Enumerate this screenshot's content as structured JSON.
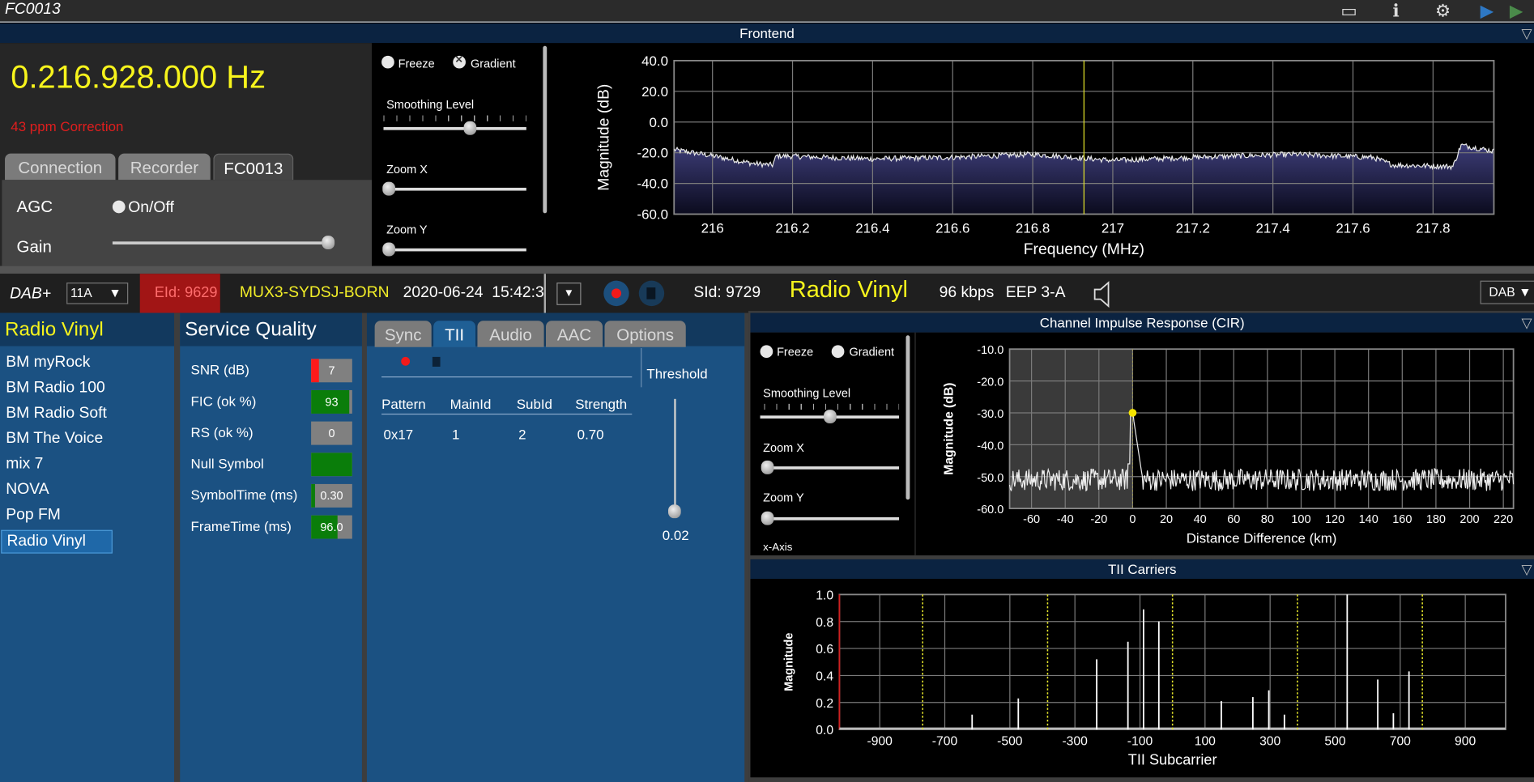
{
  "window": {
    "title": "FC0013",
    "icons": [
      "window-icon",
      "info-icon",
      "gear-icon",
      "play-icon",
      "play-green-icon"
    ]
  },
  "frontend": {
    "header": "Frontend",
    "frequency": "0.216.928.000",
    "frequency_unit": "Hz",
    "correction": "43 ppm Correction",
    "tabs": [
      {
        "label": "Connection"
      },
      {
        "label": "Recorder"
      },
      {
        "label": "FC0013",
        "active": true
      }
    ],
    "agc_label": "AGC",
    "agc_toggle": "On/Off",
    "gain_label": "Gain",
    "gain_value": 1.0,
    "controls": {
      "freeze": "Freeze",
      "gradient": "Gradient",
      "smoothing": "Smoothing Level",
      "zoom_x": "Zoom X",
      "zoom_y": "Zoom Y",
      "smoothing_value": 0.6,
      "zoom_x_value": 0,
      "zoom_y_value": 0
    }
  },
  "dab_bar": {
    "mode": "DAB+",
    "channel": "11A",
    "eid": "EId: 9629",
    "ensemble": "MUX3-SYDSJ-BORN",
    "datetime": "2020-06-24  15:42:3",
    "sid": "SId: 9729",
    "service": "Radio Vinyl",
    "bitrate": "96 kbps",
    "protection": "EEP 3-A",
    "output": "DAB"
  },
  "stations": {
    "title": "Radio Vinyl",
    "items": [
      "BM myRock",
      "BM Radio 100",
      "BM Radio Soft",
      "BM The Voice",
      "mix 7",
      "NOVA",
      "Pop FM",
      "Radio Vinyl"
    ],
    "selected": "Radio Vinyl"
  },
  "service_quality": {
    "title": "Service Quality",
    "rows": [
      {
        "label": "SNR (dB)",
        "value": "7",
        "level": 0.2,
        "color": "#ff1a1a"
      },
      {
        "label": "FIC (ok %)",
        "value": "93",
        "level": 0.93,
        "color": "#0a7d0a"
      },
      {
        "label": "RS (ok %)",
        "value": "0",
        "level": 0,
        "color": "#0a7d0a"
      },
      {
        "label": "Null Symbol",
        "value": "",
        "level": 1,
        "color": "#0a7d0a"
      },
      {
        "label": "SymbolTime (ms)",
        "value": "0.30",
        "level": 0.1,
        "color": "#0a7d0a"
      },
      {
        "label": "FrameTime (ms)",
        "value": "96.0",
        "level": 0.65,
        "color": "#0a7d0a"
      }
    ]
  },
  "tii_tabs": {
    "tabs": [
      "Sync",
      "TII",
      "Audio",
      "AAC",
      "Options"
    ],
    "active": "TII",
    "table": {
      "headers": [
        "Pattern",
        "MainId",
        "SubId",
        "Strength"
      ],
      "rows": [
        [
          "0x17",
          "1",
          "2",
          "0.70"
        ]
      ]
    },
    "threshold_label": "Threshold",
    "threshold_value": "0.02",
    "threshold_level": 0.02
  },
  "cir": {
    "header": "Channel Impulse Response (CIR)",
    "controls": {
      "freeze": "Freeze",
      "gradient": "Gradient",
      "smoothing": "Smoothing Level",
      "zoom_x": "Zoom X",
      "zoom_y": "Zoom Y",
      "x_axis": "x-Axis",
      "smoothing_value": 0.5,
      "zoom_x_value": 0,
      "zoom_y_value": 0
    }
  },
  "tii_carriers": {
    "header": "TII Carriers"
  },
  "chart_data": [
    {
      "id": "frontend",
      "type": "area",
      "xlabel": "Frequency (MHz)",
      "ylabel": "Magnitude (dB)",
      "xlim": [
        215.904,
        217.952
      ],
      "ylim": [
        -60,
        40
      ],
      "xticks": [
        216,
        216.2,
        216.4,
        216.6,
        216.8,
        217,
        217.2,
        217.4,
        217.6,
        217.8
      ],
      "yticks": [
        40,
        20,
        0,
        -20,
        -40,
        -60
      ],
      "ytick_labels": [
        "40.0",
        "20.0",
        "0.0",
        "-20.0",
        "-40.0",
        "-60.0"
      ],
      "grid": true,
      "marker_x": 216.928,
      "marker_color": "#e5e52a",
      "series": [
        {
          "x": [
            215.904,
            216.0,
            216.1,
            216.15,
            216.16,
            216.4,
            216.6,
            216.8,
            217.0,
            217.2,
            217.45,
            217.65,
            217.7,
            217.85,
            217.87,
            217.952
          ],
          "y": [
            -18,
            -22,
            -27,
            -28,
            -22,
            -24,
            -23,
            -21,
            -25,
            -23,
            -21,
            -23,
            -28,
            -29,
            -15,
            -19
          ]
        }
      ]
    },
    {
      "id": "cir",
      "type": "line",
      "xlabel": "Distance Difference (km)",
      "ylabel": "Magnitude (dB)",
      "xlim": [
        -73,
        226
      ],
      "ylim": [
        -60,
        -10
      ],
      "xticks": [
        -60,
        -40,
        -20,
        0,
        20,
        40,
        60,
        80,
        100,
        120,
        140,
        160,
        180,
        200,
        220
      ],
      "yticks": [
        -10,
        -20,
        -30,
        -40,
        -50,
        -60
      ],
      "ytick_labels": [
        "-10.0",
        "-20.0",
        "-30.0",
        "-40.0",
        "-50.0",
        "-60.0"
      ],
      "grid": true,
      "shaded_range": [
        -73,
        0
      ],
      "peak": {
        "x": 0,
        "y": -30,
        "color": "#f5e400"
      },
      "noise_floor": -51
    },
    {
      "id": "tii",
      "type": "bar",
      "xlabel": "TII Subcarrier",
      "ylabel": "Magnitude",
      "xlim": [
        -1024,
        1024
      ],
      "ylim": [
        0,
        1
      ],
      "xticks": [
        -900,
        -700,
        -500,
        -300,
        -100,
        100,
        300,
        500,
        700,
        900
      ],
      "yticks": [
        1,
        0.8,
        0.6,
        0.4,
        0.2,
        0
      ],
      "ytick_labels": [
        "1.0",
        "0.8",
        "0.6",
        "0.4",
        "0.2",
        "0.0"
      ],
      "grid": true,
      "dotted_lines": [
        -768,
        -384,
        0,
        384,
        768
      ],
      "dotted_color": "#e5e52a",
      "x": [
        -616,
        -474,
        -233,
        -137,
        -89,
        -42,
        150,
        247,
        296,
        344,
        537,
        631,
        679,
        727
      ],
      "values": [
        0.11,
        0.23,
        0.52,
        0.65,
        0.89,
        0.8,
        0.21,
        0.24,
        0.29,
        0.11,
        1.0,
        0.37,
        0.12,
        0.43
      ]
    }
  ]
}
